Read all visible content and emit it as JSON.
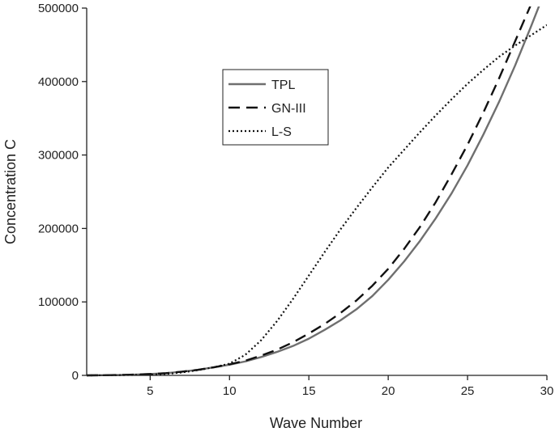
{
  "chart_data": {
    "type": "line",
    "title": "",
    "xlabel": "Wave Number",
    "ylabel": "Concentration C",
    "xlim": [
      1,
      30
    ],
    "ylim": [
      0,
      500000
    ],
    "xticks": [
      5,
      10,
      15,
      20,
      25,
      30
    ],
    "yticks": [
      0,
      100000,
      200000,
      300000,
      400000,
      500000
    ],
    "grid": false,
    "legend_position": "upper-left-center",
    "series": [
      {
        "name": "TPL",
        "style": "solid",
        "color": "#6f6f6f",
        "x": [
          1,
          2,
          3,
          4,
          5,
          6,
          7,
          8,
          9,
          10,
          11,
          12,
          13,
          14,
          15,
          16,
          17,
          18,
          19,
          20,
          21,
          22,
          23,
          24,
          25,
          26,
          27,
          28,
          29,
          30
        ],
        "y": [
          0,
          200,
          500,
          1000,
          1800,
          3000,
          5000,
          7500,
          11000,
          14500,
          19000,
          25000,
          32000,
          40000,
          50000,
          62000,
          75000,
          90000,
          108000,
          130000,
          155000,
          183000,
          214000,
          248000,
          286000,
          328000,
          373000,
          422000,
          475000,
          530000
        ]
      },
      {
        "name": "GN-III",
        "style": "dashed",
        "color": "#111111",
        "x": [
          1,
          2,
          3,
          4,
          5,
          6,
          7,
          8,
          9,
          10,
          11,
          12,
          13,
          14,
          15,
          16,
          17,
          18,
          19,
          20,
          21,
          22,
          23,
          24,
          25,
          26,
          27,
          28,
          29,
          30
        ],
        "y": [
          0,
          200,
          500,
          1000,
          1800,
          3000,
          5000,
          7500,
          11000,
          15000,
          20000,
          27000,
          35000,
          45000,
          57000,
          70000,
          85000,
          102000,
          122000,
          145000,
          172000,
          202000,
          236000,
          274000,
          314000,
          358000,
          405000,
          455000,
          505000,
          560000
        ]
      },
      {
        "name": "L-S",
        "style": "dotted",
        "color": "#111111",
        "x": [
          1,
          2,
          3,
          4,
          5,
          6,
          7,
          8,
          9,
          10,
          11,
          12,
          13,
          14,
          15,
          16,
          17,
          18,
          19,
          20,
          21,
          22,
          23,
          24,
          25,
          26,
          27,
          28,
          29,
          30
        ],
        "y": [
          0,
          100,
          300,
          600,
          1000,
          2000,
          4000,
          7000,
          11000,
          16000,
          28000,
          48000,
          74000,
          104000,
          136000,
          168000,
          199000,
          228000,
          256000,
          283000,
          307000,
          331000,
          354000,
          376000,
          397000,
          416000,
          434000,
          449000,
          463000,
          477000
        ]
      }
    ]
  }
}
